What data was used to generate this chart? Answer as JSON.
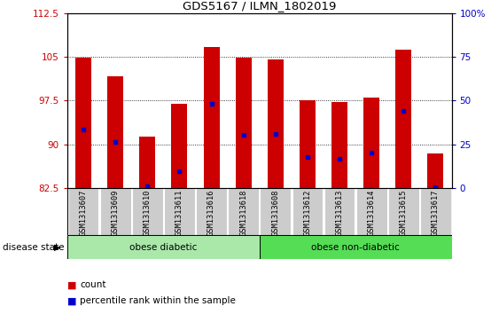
{
  "title": "GDS5167 / ILMN_1802019",
  "samples": [
    "GSM1313607",
    "GSM1313609",
    "GSM1313610",
    "GSM1313611",
    "GSM1313616",
    "GSM1313618",
    "GSM1313608",
    "GSM1313612",
    "GSM1313613",
    "GSM1313614",
    "GSM1313615",
    "GSM1313617"
  ],
  "bar_tops": [
    104.9,
    101.7,
    91.3,
    97.0,
    106.7,
    104.8,
    104.6,
    97.6,
    97.2,
    98.0,
    106.2,
    88.5
  ],
  "bar_base": 82.5,
  "blue_vals": [
    92.5,
    90.4,
    82.8,
    85.5,
    96.9,
    91.7,
    91.8,
    87.8,
    87.5,
    88.6,
    95.8,
    82.7
  ],
  "ylim_left": [
    82.5,
    112.5
  ],
  "ylim_right": [
    0,
    100
  ],
  "yticks_left": [
    82.5,
    90.0,
    97.5,
    105.0,
    112.5
  ],
  "yticks_right": [
    0,
    25,
    50,
    75,
    100
  ],
  "ytick_labels_left": [
    "82.5",
    "90",
    "97.5",
    "105",
    "112.5"
  ],
  "ytick_labels_right": [
    "0",
    "25",
    "50",
    "75",
    "100%"
  ],
  "groups": [
    {
      "label": "obese diabetic",
      "start": 0,
      "end": 5
    },
    {
      "label": "obese non-diabetic",
      "start": 6,
      "end": 11
    }
  ],
  "group_colors": [
    "#aae8aa",
    "#55dd55"
  ],
  "bar_color": "#CC0000",
  "blue_color": "#0000CC",
  "tick_bg_color": "#cccccc",
  "disease_state_label": "disease state",
  "grid_color": "black"
}
